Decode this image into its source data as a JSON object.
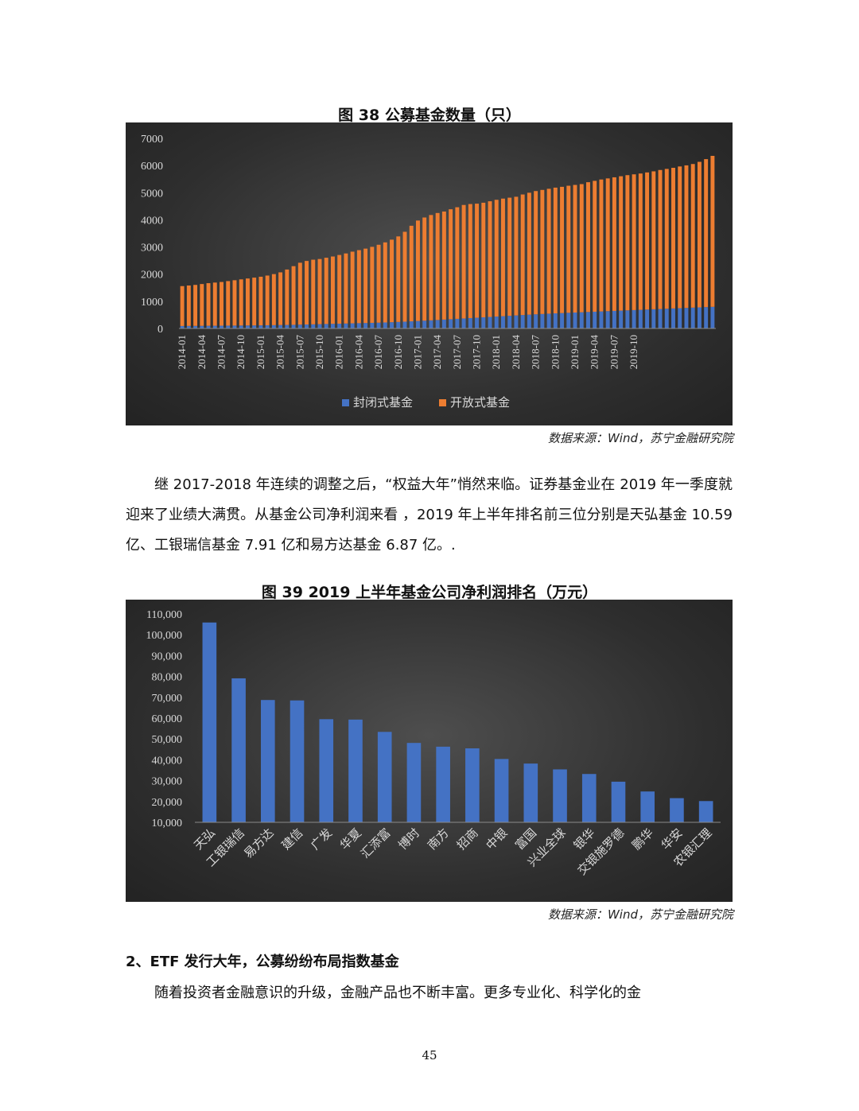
{
  "figure38": {
    "title": "图 38 公募基金数量（只）",
    "source": "数据来源：Wind，苏宁金融研究院"
  },
  "figure39": {
    "title": "图 39 2019 上半年基金公司净利润排名（万元）",
    "source": "数据来源：Wind，苏宁金融研究院"
  },
  "body": {
    "paragraph1": "继 2017-2018 年连续的调整之后，“权益大年”悄然来临。证券基金业在 2019 年一季度就迎来了业绩大满贯。从基金公司净利润来看 ，2019 年上半年排名前三位分别是天弘基金 10.59 亿、工银瑞信基金 7.91 亿和易方达基金 6.87 亿。.",
    "section_heading": "2、ETF 发行大年，公募纷纷布局指数基金",
    "paragraph2": "随着投资者金融意识的升级，金融产品也不断丰富。更多专业化、科学化的金"
  },
  "page_number": "45",
  "colors": {
    "closed": "#4472c4",
    "open": "#ed7d31",
    "bar": "#4472c4",
    "axis_text": "#d9d9d9"
  },
  "chart_data": [
    {
      "type": "bar",
      "stacked": true,
      "ylim": [
        0,
        7000
      ],
      "yticks": [
        0,
        1000,
        2000,
        3000,
        4000,
        5000,
        6000,
        7000
      ],
      "xtick_labels": [
        "2014-01",
        "2014-04",
        "2014-07",
        "2014-10",
        "2015-01",
        "2015-04",
        "2015-07",
        "2015-10",
        "2016-01",
        "2016-04",
        "2016-07",
        "2016-10",
        "2017-01",
        "2017-04",
        "2017-07",
        "2017-10",
        "2018-01",
        "2018-04",
        "2018-07",
        "2018-10",
        "2019-01",
        "2019-04",
        "2019-07",
        "2019-10"
      ],
      "legend_position": "bottom",
      "grid": false,
      "series": [
        {
          "name": "封闭式基金",
          "values": [
            90,
            92,
            94,
            96,
            98,
            100,
            102,
            104,
            106,
            108,
            110,
            112,
            115,
            118,
            122,
            126,
            130,
            134,
            140,
            146,
            152,
            158,
            164,
            170,
            176,
            182,
            188,
            194,
            200,
            206,
            212,
            220,
            230,
            240,
            250,
            262,
            274,
            286,
            298,
            312,
            326,
            340,
            354,
            368,
            382,
            396,
            410,
            424,
            438,
            452,
            466,
            480,
            494,
            508,
            520,
            532,
            544,
            556,
            566,
            576,
            586,
            596,
            606,
            616,
            626,
            636,
            646,
            656,
            666,
            676,
            686,
            696,
            706,
            716,
            726,
            736,
            746,
            756,
            766,
            776,
            786,
            796
          ]
        },
        {
          "name": "开放式基金",
          "values": [
            1470,
            1490,
            1510,
            1540,
            1570,
            1590,
            1610,
            1640,
            1670,
            1700,
            1730,
            1760,
            1790,
            1830,
            1880,
            1940,
            2040,
            2160,
            2280,
            2340,
            2380,
            2400,
            2440,
            2480,
            2530,
            2580,
            2640,
            2690,
            2740,
            2800,
            2870,
            2950,
            3040,
            3150,
            3310,
            3520,
            3700,
            3800,
            3880,
            3940,
            3980,
            4050,
            4110,
            4180,
            4200,
            4200,
            4220,
            4260,
            4300,
            4330,
            4350,
            4370,
            4440,
            4490,
            4540,
            4570,
            4600,
            4630,
            4650,
            4680,
            4700,
            4720,
            4780,
            4820,
            4860,
            4890,
            4920,
            4950,
            4980,
            5000,
            5020,
            5050,
            5080,
            5120,
            5150,
            5180,
            5220,
            5250,
            5290,
            5360,
            5450,
            5560
          ]
        }
      ]
    },
    {
      "type": "bar",
      "ylim": [
        10000,
        110000
      ],
      "yticks": [
        10000,
        20000,
        30000,
        40000,
        50000,
        60000,
        70000,
        80000,
        90000,
        100000,
        110000
      ],
      "grid": false,
      "categories": [
        "天弘",
        "工银瑞信",
        "易方达",
        "建信",
        "广发",
        "华夏",
        "汇添富",
        "博时",
        "南方",
        "招商",
        "中银",
        "富国",
        "兴业全球",
        "银华",
        "交银施罗德",
        "鹏华",
        "华安",
        "农银汇理"
      ],
      "values": [
        105900,
        79100,
        68700,
        68500,
        59500,
        59300,
        53400,
        48100,
        46300,
        45500,
        40400,
        38200,
        35400,
        33200,
        29500,
        24800,
        21600,
        20200
      ]
    }
  ]
}
